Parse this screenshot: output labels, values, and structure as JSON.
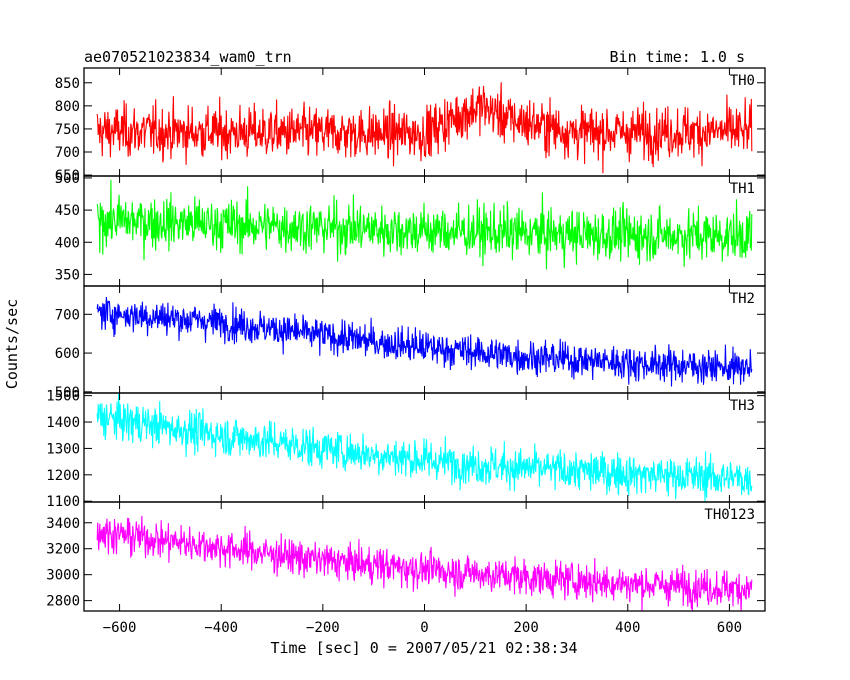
{
  "chart_data": {
    "type": "line",
    "title": "ae070521023834_wam0_trn",
    "subtitle": "Bin time: 1.0 s",
    "xlabel": "Time [sec] 0 = 2007/05/21 02:38:34",
    "ylabel": "Counts/sec",
    "xlim": [
      -670,
      670
    ],
    "x_ticks": [
      -600,
      -400,
      -200,
      0,
      200,
      400,
      600
    ],
    "x_tick_labels": [
      "−600",
      "−400",
      "−200",
      "0",
      "200",
      "400",
      "600"
    ],
    "x_data_range": [
      -644,
      644
    ],
    "grid": false,
    "panels": [
      {
        "name": "TH0",
        "color": "#ff0000",
        "ylim": [
          648,
          882
        ],
        "y_ticks": [
          650,
          700,
          750,
          800,
          850
        ],
        "trend": {
          "x": [
            -644,
            -300,
            0,
            60,
            110,
            170,
            300,
            644
          ],
          "y": [
            745,
            742,
            740,
            775,
            800,
            770,
            742,
            745
          ]
        },
        "noise_sd": 28
      },
      {
        "name": "TH1",
        "color": "#00ff00",
        "ylim": [
          332,
          503
        ],
        "y_ticks": [
          350,
          400,
          450,
          500
        ],
        "trend": {
          "x": [
            -644,
            -300,
            0,
            300,
            644
          ],
          "y": [
            435,
            425,
            418,
            412,
            410
          ]
        },
        "noise_sd": 20
      },
      {
        "name": "TH2",
        "color": "#0000ff",
        "ylim": [
          497,
          773
        ],
        "y_ticks": [
          500,
          600,
          700
        ],
        "trend": {
          "x": [
            -644,
            -400,
            -200,
            0,
            200,
            400,
            644
          ],
          "y": [
            705,
            680,
            645,
            615,
            590,
            575,
            560
          ]
        },
        "noise_sd": 22
      },
      {
        "name": "TH3",
        "color": "#00ffff",
        "ylim": [
          1097,
          1510
        ],
        "y_ticks": [
          1100,
          1200,
          1300,
          1400,
          1500
        ],
        "trend": {
          "x": [
            -644,
            -400,
            -200,
            0,
            200,
            400,
            644
          ],
          "y": [
            1420,
            1350,
            1300,
            1255,
            1225,
            1205,
            1185
          ]
        },
        "noise_sd": 38
      },
      {
        "name": "TH0123",
        "color": "#ff00ff",
        "ylim": [
          2720,
          3560
        ],
        "y_ticks": [
          2800,
          3000,
          3200,
          3400
        ],
        "trend": {
          "x": [
            -644,
            -400,
            -200,
            0,
            200,
            400,
            644
          ],
          "y": [
            3330,
            3210,
            3110,
            3040,
            2980,
            2930,
            2890
          ]
        },
        "noise_sd": 70
      }
    ]
  }
}
